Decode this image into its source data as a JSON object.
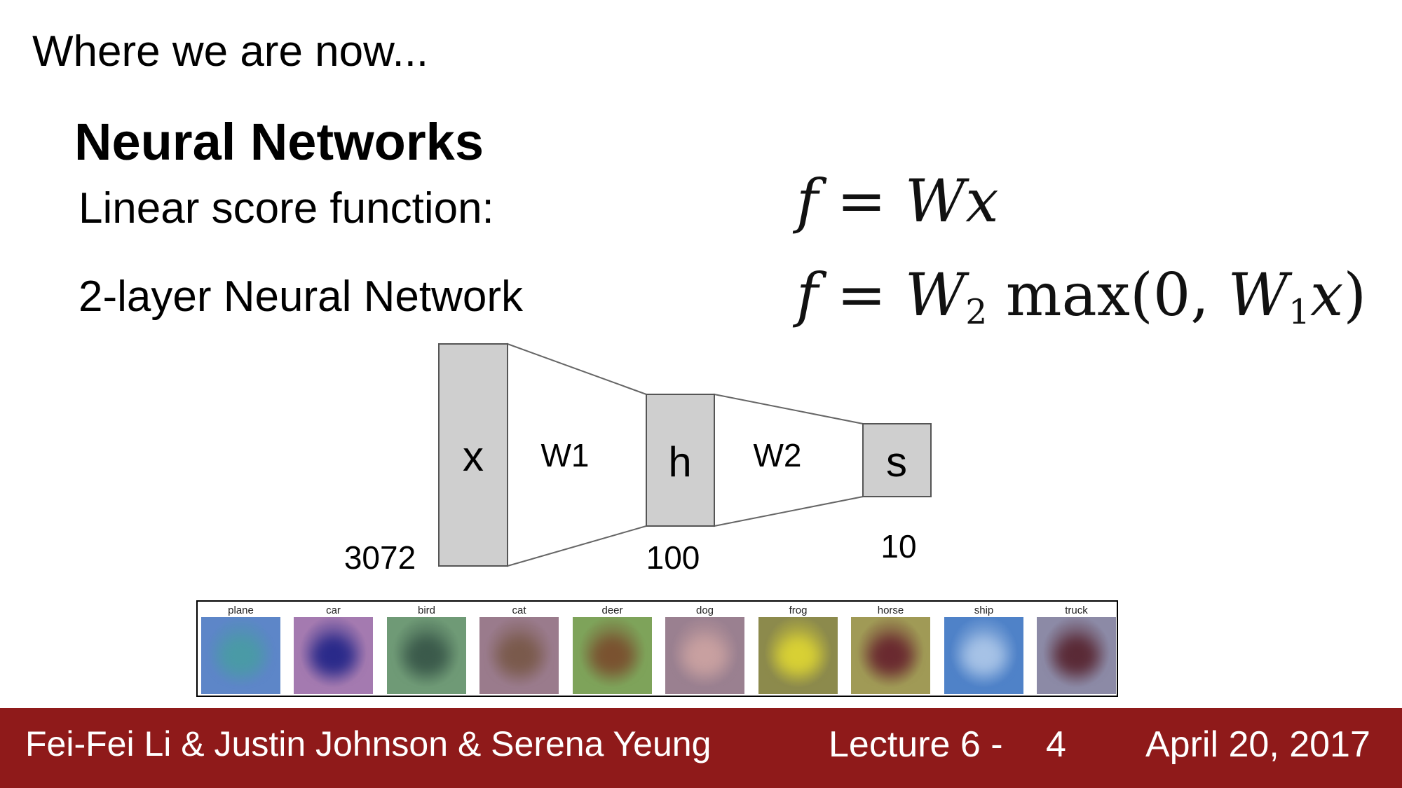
{
  "slide": {
    "heading": "Where we are now...",
    "section_title": "Neural Networks",
    "rows": [
      {
        "label": "Linear score function:"
      },
      {
        "label": "2-layer Neural Network"
      }
    ]
  },
  "equations": {
    "linear": {
      "f": "f",
      "eq": " = ",
      "W": "W",
      "x": "x"
    },
    "two_layer": {
      "f": "f",
      "eq": " = ",
      "W2": "W",
      "sub2": "2",
      "max": " max(0, ",
      "W1": "W",
      "sub1": "1",
      "x": "x",
      "close": ")"
    }
  },
  "diagram": {
    "layers": [
      {
        "symbol": "x",
        "size": "3072"
      },
      {
        "symbol": "h",
        "size": "100"
      },
      {
        "symbol": "s",
        "size": "10"
      }
    ],
    "weights": [
      "W1",
      "W2"
    ],
    "colors": {
      "box_fill": "#cfcfcf",
      "box_stroke": "#555555",
      "edge": "#666666"
    }
  },
  "class_templates": [
    {
      "label": "plane",
      "bg": "#5d86c8",
      "blob": "#4a9aa6"
    },
    {
      "label": "car",
      "bg": "#a47ab0",
      "blob": "#2a2a8a"
    },
    {
      "label": "bird",
      "bg": "#6f9a76",
      "blob": "#3b5a4b"
    },
    {
      "label": "cat",
      "bg": "#9a7b8c",
      "blob": "#7a5a4c"
    },
    {
      "label": "deer",
      "bg": "#7ea35a",
      "blob": "#7a5230"
    },
    {
      "label": "dog",
      "bg": "#9a8090",
      "blob": "#c8a0a0"
    },
    {
      "label": "frog",
      "bg": "#8c8a4c",
      "blob": "#d8d034"
    },
    {
      "label": "horse",
      "bg": "#a09a56",
      "blob": "#6a2a30"
    },
    {
      "label": "ship",
      "bg": "#4f82c8",
      "blob": "#a6c2e6"
    },
    {
      "label": "truck",
      "bg": "#8c8aa6",
      "blob": "#5a2a36"
    }
  ],
  "footer": {
    "authors": "Fei-Fei Li & Justin Johnson & Serena Yeung",
    "lecture": "Lecture 6 -",
    "page": "4",
    "date": "April 20, 2017",
    "color": "#8f1a1a"
  }
}
